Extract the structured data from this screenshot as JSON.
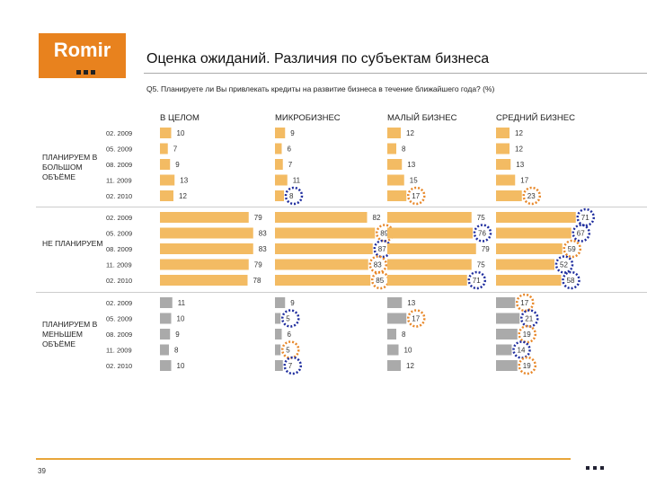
{
  "logo": {
    "text": "Romir"
  },
  "title": "Оценка ожиданий. Различия по субъектам бизнеса",
  "question": "Q5. Планируете ли Вы привлекать кредиты на развитие бизнеса в течение ближайшего года? (%)",
  "page_number": "39",
  "colors": {
    "orange": "#f0b860",
    "orange_bar": "#f3bb63",
    "gray_bar": "#aaaaaa",
    "circle_orange": "#e8882a",
    "circle_blue": "#1f2d9e",
    "logo": "#e8821e"
  },
  "chart_data": {
    "type": "bar",
    "orientation": "horizontal",
    "unit": "%",
    "columns": [
      "В ЦЕЛОМ",
      "МИКРОБИЗНЕС",
      "МАЛЫЙ БИЗНЕС",
      "СРЕДНИЙ БИЗНЕС"
    ],
    "periods": [
      "02. 2009",
      "05. 2009",
      "08. 2009",
      "11. 2009",
      "02. 2010"
    ],
    "groups": [
      {
        "label": "ПЛАНИРУЕМ В БОЛЬШОМ ОБЪЁМЕ",
        "bar_color": "orange",
        "values": [
          [
            "10",
            "7",
            "9",
            "13",
            "12"
          ],
          [
            "9",
            "6",
            "7",
            "11",
            "8"
          ],
          [
            "12",
            "8",
            "13",
            "15",
            "17"
          ],
          [
            "12",
            "12",
            "13",
            "17",
            "23"
          ]
        ],
        "circles": [
          [
            null,
            null,
            null,
            null,
            null
          ],
          [
            null,
            null,
            null,
            null,
            "blue"
          ],
          [
            null,
            null,
            null,
            null,
            "orange"
          ],
          [
            null,
            null,
            null,
            null,
            "orange"
          ]
        ]
      },
      {
        "label": "НЕ ПЛАНИРУЕМ",
        "bar_color": "orange",
        "values": [
          [
            "79",
            "83",
            "83",
            "79",
            "78"
          ],
          [
            "82",
            "89",
            "87",
            "83",
            "85"
          ],
          [
            "75",
            "76",
            "79",
            "75",
            "71"
          ],
          [
            "71",
            "67",
            "59",
            "52",
            "58"
          ]
        ],
        "circles": [
          [
            null,
            null,
            null,
            null,
            null
          ],
          [
            null,
            "orange",
            "blue",
            "orange",
            "orange"
          ],
          [
            null,
            "blue",
            null,
            null,
            "blue"
          ],
          [
            "blue",
            "blue",
            "orange",
            "blue",
            "blue"
          ]
        ]
      },
      {
        "label": "ПЛАНИРУЕМ В МЕНЬШЕМ ОБЪЁМЕ",
        "bar_color": "gray",
        "values": [
          [
            "11",
            "10",
            "9",
            "8",
            "10"
          ],
          [
            "9",
            "5",
            "6",
            "5",
            "7"
          ],
          [
            "13",
            "17",
            "8",
            "10",
            "12"
          ],
          [
            "17",
            "21",
            "19",
            "14",
            "19"
          ]
        ],
        "circles": [
          [
            null,
            null,
            null,
            null,
            null
          ],
          [
            null,
            "blue",
            null,
            "orange",
            "blue"
          ],
          [
            null,
            "orange",
            null,
            null,
            null
          ],
          [
            "orange",
            "blue",
            "orange",
            "blue",
            "orange"
          ]
        ]
      }
    ]
  }
}
